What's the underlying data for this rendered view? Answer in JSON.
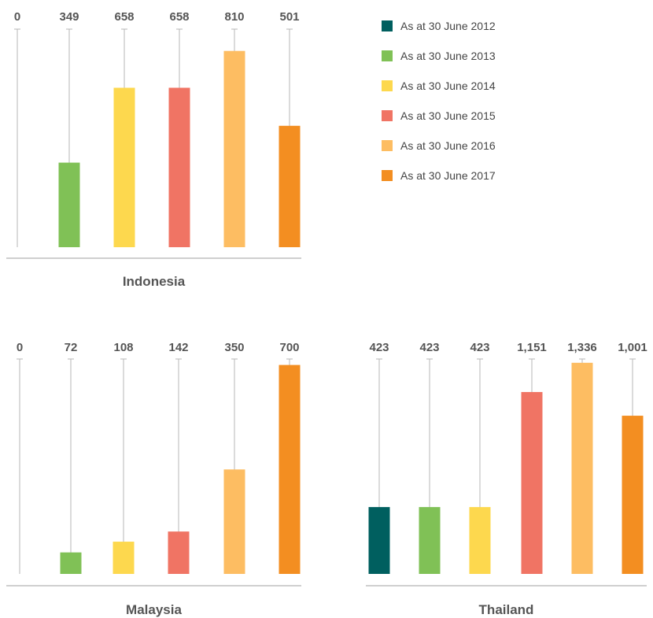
{
  "legend": [
    {
      "label": "As at 30 June 2012",
      "color": "#005f5f"
    },
    {
      "label": "As at 30 June 2013",
      "color": "#80c156"
    },
    {
      "label": "As at 30 June 2014",
      "color": "#fdd84e"
    },
    {
      "label": "As at 30 June 2015",
      "color": "#f07464"
    },
    {
      "label": "As at 30 June 2016",
      "color": "#fdbd62"
    },
    {
      "label": "As at 30 June 2017",
      "color": "#f38e21"
    }
  ],
  "chart_data": [
    {
      "type": "bar",
      "title": "Indonesia",
      "categories": [
        "As at 30 June 2012",
        "As at 30 June 2013",
        "As at 30 June 2014",
        "As at 30 June 2015",
        "As at 30 June 2016",
        "As at 30 June 2017"
      ],
      "values": [
        0,
        349,
        658,
        658,
        810,
        501
      ],
      "value_labels": [
        "0",
        "349",
        "658",
        "658",
        "810",
        "501"
      ],
      "ylim": [
        0,
        900
      ]
    },
    {
      "type": "bar",
      "title": "Malaysia",
      "categories": [
        "As at 30 June 2012",
        "As at 30 June 2013",
        "As at 30 June 2014",
        "As at 30 June 2015",
        "As at 30 June 2016",
        "As at 30 June 2017"
      ],
      "values": [
        0,
        72,
        108,
        142,
        350,
        700
      ],
      "value_labels": [
        "0",
        "72",
        "108",
        "142",
        "350",
        "700"
      ],
      "ylim": [
        0,
        720
      ]
    },
    {
      "type": "bar",
      "title": "Thailand",
      "categories": [
        "As at 30 June 2012",
        "As at 30 June 2013",
        "As at 30 June 2014",
        "As at 30 June 2015",
        "As at 30 June 2016",
        "As at 30 June 2017"
      ],
      "values": [
        423,
        423,
        423,
        1151,
        1336,
        1001
      ],
      "value_labels": [
        "423",
        "423",
        "423",
        "1,151",
        "1,336",
        "1,001"
      ],
      "ylim": [
        0,
        1360
      ]
    }
  ]
}
